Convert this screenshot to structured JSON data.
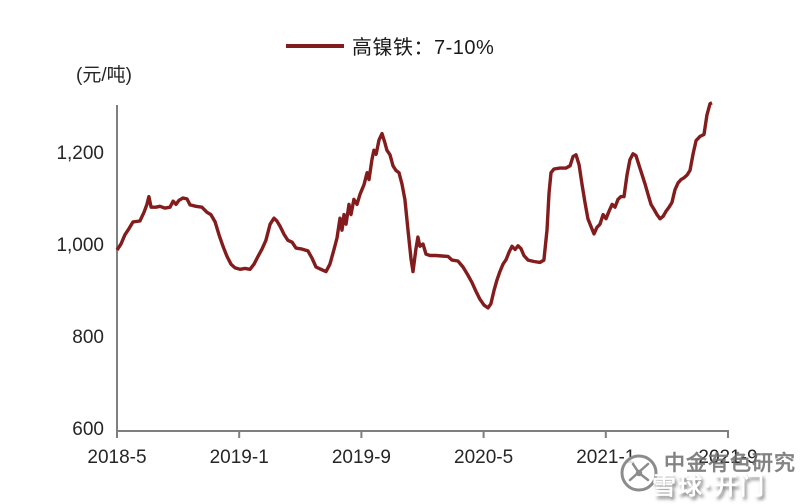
{
  "page": {
    "background": "#FFFFFF"
  },
  "legend": {
    "position": "top-center"
  },
  "watermark": {
    "primary": "中金有色研究",
    "secondary": "雪球·开门",
    "logo_icon": "circle-emblem-icon"
  },
  "colors": {
    "line": "#831D1D",
    "axis": "#7F7F7F",
    "tick_text": "#262626",
    "legend_text": "#1A1A1A",
    "watermark_gray": "#6E6E6E",
    "watermark_white": "#FFFFFF"
  },
  "chart_data": {
    "type": "line",
    "title": "",
    "unit_label": "(元/吨)",
    "xlabel": "",
    "ylabel": "(元/吨)",
    "grid": false,
    "legend_position": "top-center",
    "x_unit": "months since 2018-05",
    "xlim_months": [
      0,
      40
    ],
    "ylim": [
      600,
      1330
    ],
    "y_ticks": [
      {
        "value": 600,
        "label": "600"
      },
      {
        "value": 800,
        "label": "800"
      },
      {
        "value": 1000,
        "label": "1,000"
      },
      {
        "value": 1200,
        "label": "1,200"
      }
    ],
    "x_ticks": [
      {
        "month": 0,
        "label": "2018-5"
      },
      {
        "month": 8,
        "label": "2019-1"
      },
      {
        "month": 16,
        "label": "2019-9"
      },
      {
        "month": 24,
        "label": "2020-5"
      },
      {
        "month": 32,
        "label": "2021-1"
      },
      {
        "month": 40,
        "label": "2021-9"
      }
    ],
    "series": [
      {
        "name": "高镍铁：7-10%",
        "color": "#831D1D",
        "points": [
          [
            0,
            987
          ],
          [
            0.26,
            1000
          ],
          [
            0.52,
            1020
          ],
          [
            0.79,
            1034
          ],
          [
            1.05,
            1048
          ],
          [
            1.5,
            1050
          ],
          [
            1.77,
            1069
          ],
          [
            1.96,
            1086
          ],
          [
            2.09,
            1103
          ],
          [
            2.23,
            1080
          ],
          [
            2.55,
            1080
          ],
          [
            2.81,
            1082
          ],
          [
            3.14,
            1078
          ],
          [
            3.47,
            1080
          ],
          [
            3.67,
            1093
          ],
          [
            3.86,
            1086
          ],
          [
            4.06,
            1095
          ],
          [
            4.32,
            1100
          ],
          [
            4.58,
            1098
          ],
          [
            4.78,
            1085
          ],
          [
            5.17,
            1082
          ],
          [
            5.56,
            1080
          ],
          [
            5.89,
            1069
          ],
          [
            6.15,
            1064
          ],
          [
            6.42,
            1048
          ],
          [
            6.68,
            1020
          ],
          [
            6.94,
            995
          ],
          [
            7.2,
            973
          ],
          [
            7.46,
            956
          ],
          [
            7.73,
            948
          ],
          [
            8.05,
            945
          ],
          [
            8.38,
            947
          ],
          [
            8.71,
            945
          ],
          [
            8.97,
            956
          ],
          [
            9.23,
            973
          ],
          [
            9.49,
            989
          ],
          [
            9.75,
            1008
          ],
          [
            10.02,
            1043
          ],
          [
            10.28,
            1056
          ],
          [
            10.47,
            1050
          ],
          [
            10.67,
            1039
          ],
          [
            10.93,
            1021
          ],
          [
            11.19,
            1008
          ],
          [
            11.46,
            1004
          ],
          [
            11.72,
            991
          ],
          [
            12.11,
            989
          ],
          [
            12.5,
            985
          ],
          [
            12.77,
            969
          ],
          [
            13.03,
            950
          ],
          [
            13.35,
            945
          ],
          [
            13.68,
            940
          ],
          [
            13.94,
            956
          ],
          [
            14.21,
            989
          ],
          [
            14.4,
            1013
          ],
          [
            14.6,
            1056
          ],
          [
            14.73,
            1030
          ],
          [
            14.86,
            1064
          ],
          [
            14.99,
            1043
          ],
          [
            15.19,
            1086
          ],
          [
            15.32,
            1064
          ],
          [
            15.51,
            1097
          ],
          [
            15.71,
            1086
          ],
          [
            15.91,
            1108
          ],
          [
            16.17,
            1129
          ],
          [
            16.37,
            1155
          ],
          [
            16.5,
            1140
          ],
          [
            16.69,
            1183
          ],
          [
            16.82,
            1204
          ],
          [
            16.96,
            1195
          ],
          [
            17.15,
            1226
          ],
          [
            17.35,
            1240
          ],
          [
            17.54,
            1220
          ],
          [
            17.67,
            1204
          ],
          [
            17.87,
            1194
          ],
          [
            18.07,
            1170
          ],
          [
            18.26,
            1160
          ],
          [
            18.46,
            1155
          ],
          [
            18.66,
            1130
          ],
          [
            18.85,
            1097
          ],
          [
            19.05,
            1030
          ],
          [
            19.25,
            968
          ],
          [
            19.38,
            940
          ],
          [
            19.57,
            989
          ],
          [
            19.7,
            1015
          ],
          [
            19.83,
            995
          ],
          [
            20.03,
            1000
          ],
          [
            20.23,
            978
          ],
          [
            20.49,
            975
          ],
          [
            20.88,
            975
          ],
          [
            21.28,
            974
          ],
          [
            21.67,
            973
          ],
          [
            21.93,
            965
          ],
          [
            22.32,
            963
          ],
          [
            22.65,
            950
          ],
          [
            22.98,
            932
          ],
          [
            23.24,
            916
          ],
          [
            23.5,
            897
          ],
          [
            23.76,
            880
          ],
          [
            24.03,
            867
          ],
          [
            24.29,
            861
          ],
          [
            24.48,
            870
          ],
          [
            24.68,
            899
          ],
          [
            24.88,
            922
          ],
          [
            25.07,
            940
          ],
          [
            25.27,
            956
          ],
          [
            25.47,
            966
          ],
          [
            25.66,
            982
          ],
          [
            25.86,
            995
          ],
          [
            26.06,
            988
          ],
          [
            26.25,
            996
          ],
          [
            26.45,
            990
          ],
          [
            26.64,
            975
          ],
          [
            26.91,
            965
          ],
          [
            27.3,
            962
          ],
          [
            27.69,
            960
          ],
          [
            27.95,
            965
          ],
          [
            28.15,
            1030
          ],
          [
            28.28,
            1110
          ],
          [
            28.41,
            1155
          ],
          [
            28.61,
            1163
          ],
          [
            29,
            1165
          ],
          [
            29.39,
            1165
          ],
          [
            29.66,
            1170
          ],
          [
            29.85,
            1190
          ],
          [
            30.05,
            1194
          ],
          [
            30.25,
            1172
          ],
          [
            30.44,
            1130
          ],
          [
            30.64,
            1090
          ],
          [
            30.83,
            1055
          ],
          [
            31.03,
            1038
          ],
          [
            31.23,
            1022
          ],
          [
            31.42,
            1036
          ],
          [
            31.62,
            1043
          ],
          [
            31.82,
            1064
          ],
          [
            32.01,
            1055
          ],
          [
            32.21,
            1071
          ],
          [
            32.41,
            1086
          ],
          [
            32.6,
            1080
          ],
          [
            32.8,
            1097
          ],
          [
            32.99,
            1103
          ],
          [
            33.19,
            1103
          ],
          [
            33.39,
            1150
          ],
          [
            33.58,
            1183
          ],
          [
            33.78,
            1196
          ],
          [
            33.98,
            1192
          ],
          [
            34.17,
            1172
          ],
          [
            34.37,
            1151
          ],
          [
            34.57,
            1130
          ],
          [
            34.76,
            1108
          ],
          [
            34.96,
            1086
          ],
          [
            35.16,
            1075
          ],
          [
            35.35,
            1064
          ],
          [
            35.55,
            1055
          ],
          [
            35.75,
            1060
          ],
          [
            35.94,
            1071
          ],
          [
            36.14,
            1080
          ],
          [
            36.33,
            1090
          ],
          [
            36.53,
            1118
          ],
          [
            36.73,
            1133
          ],
          [
            36.92,
            1140
          ],
          [
            37.12,
            1144
          ],
          [
            37.32,
            1150
          ],
          [
            37.51,
            1160
          ],
          [
            37.71,
            1195
          ],
          [
            37.91,
            1225
          ],
          [
            38.17,
            1234
          ],
          [
            38.43,
            1238
          ],
          [
            38.62,
            1280
          ],
          [
            38.82,
            1305
          ],
          [
            38.95,
            1307
          ]
        ]
      }
    ]
  }
}
